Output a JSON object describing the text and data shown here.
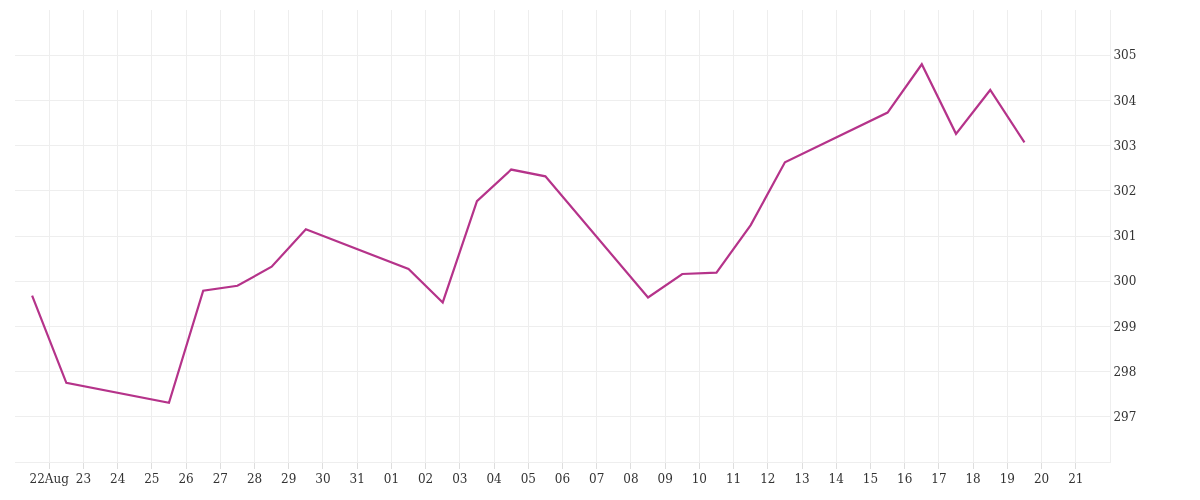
{
  "chart_data": {
    "type": "line",
    "x": [
      "--08-21T12:00",
      "--08-22T12:00",
      "--08-25T12:00",
      "--08-26T12:00",
      "--08-27T12:00",
      "--08-28T12:00",
      "--08-29T12:00",
      "--09-01T12:00",
      "--09-02T12:00",
      "--09-03T12:00",
      "--09-04T12:00",
      "--09-05T12:00",
      "--09-08T12:00",
      "--09-09T12:00",
      "--09-10T12:00",
      "--09-11T12:00",
      "--09-12T12:00",
      "--09-15T12:00",
      "--09-16T12:00",
      "--09-17T12:00",
      "--09-18T12:00",
      "--09-19T12:00"
    ],
    "series": [
      {
        "color": "#b5338a",
        "values": [
          299.68,
          297.75,
          297.31,
          299.79,
          299.9,
          300.32,
          301.15,
          300.27,
          299.53,
          301.77,
          302.47,
          302.32,
          299.64,
          300.16,
          300.19,
          301.24,
          302.63,
          303.73,
          304.8,
          303.26,
          304.23,
          303.07
        ]
      }
    ],
    "xlim": [
      "--08-21",
      "--09-22"
    ],
    "xticks": [
      {
        "value": "--08-22",
        "label": "22Aug"
      },
      {
        "value": "--08-23",
        "label": "23"
      },
      {
        "value": "--08-24",
        "label": "24"
      },
      {
        "value": "--08-25",
        "label": "25"
      },
      {
        "value": "--08-26",
        "label": "26"
      },
      {
        "value": "--08-27",
        "label": "27"
      },
      {
        "value": "--08-28",
        "label": "28"
      },
      {
        "value": "--08-29",
        "label": "29"
      },
      {
        "value": "--08-30",
        "label": "30"
      },
      {
        "value": "--08-31",
        "label": "31"
      },
      {
        "value": "--09-01",
        "label": "01"
      },
      {
        "value": "--09-02",
        "label": "02"
      },
      {
        "value": "--09-03",
        "label": "03"
      },
      {
        "value": "--09-04",
        "label": "04"
      },
      {
        "value": "--09-05",
        "label": "05"
      },
      {
        "value": "--09-06",
        "label": "06"
      },
      {
        "value": "--09-07",
        "label": "07"
      },
      {
        "value": "--09-08",
        "label": "08"
      },
      {
        "value": "--09-09",
        "label": "09"
      },
      {
        "value": "--09-10",
        "label": "10"
      },
      {
        "value": "--09-11",
        "label": "11"
      },
      {
        "value": "--09-12",
        "label": "12"
      },
      {
        "value": "--09-13",
        "label": "13"
      },
      {
        "value": "--09-14",
        "label": "14"
      },
      {
        "value": "--09-15",
        "label": "15"
      },
      {
        "value": "--09-16",
        "label": "16"
      },
      {
        "value": "--09-17",
        "label": "17"
      },
      {
        "value": "--09-18",
        "label": "18"
      },
      {
        "value": "--09-19",
        "label": "19"
      },
      {
        "value": "--09-20",
        "label": "20"
      },
      {
        "value": "--09-21",
        "label": "21"
      }
    ],
    "ylim": [
      296,
      306
    ],
    "yticks": [
      {
        "value": 296,
        "label": null
      },
      297,
      298,
      299,
      300,
      301,
      302,
      303,
      304,
      305
    ],
    "grid": true,
    "marker": "none",
    "line_style": "solid"
  }
}
